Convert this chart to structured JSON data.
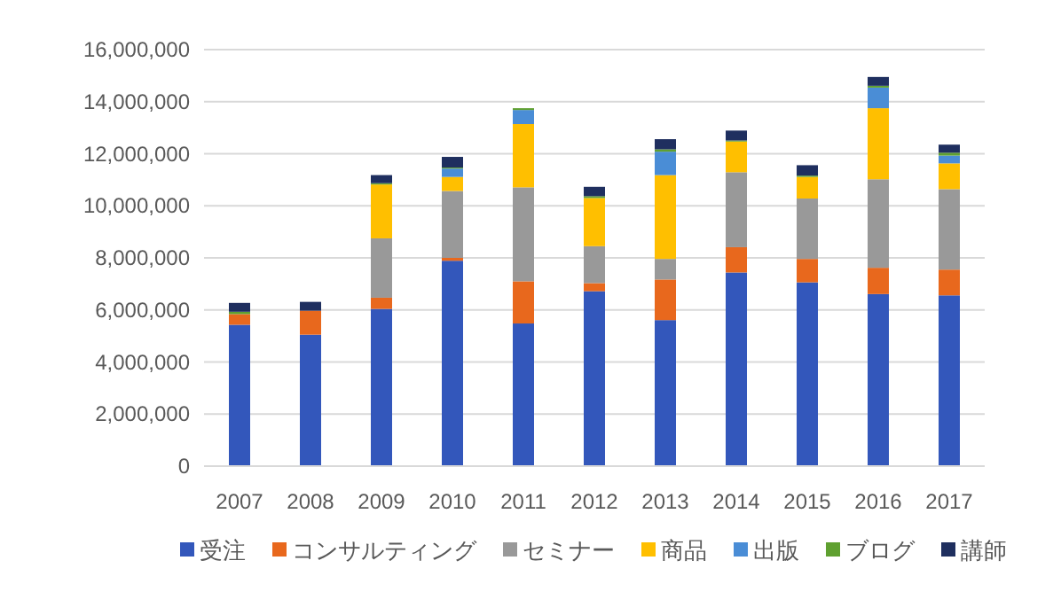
{
  "chart_data": {
    "type": "bar",
    "stacked": true,
    "grid": "y",
    "legend": "bottom",
    "categories": [
      "2007",
      "2008",
      "2009",
      "2010",
      "2011",
      "2012",
      "2013",
      "2014",
      "2015",
      "2016",
      "2017"
    ],
    "ylim": [
      0,
      16000000
    ],
    "yticks": [
      {
        "value": 0,
        "label": "0"
      },
      {
        "value": 2000000,
        "label": "2,000,000"
      },
      {
        "value": 4000000,
        "label": "4,000,000"
      },
      {
        "value": 6000000,
        "label": "6,000,000"
      },
      {
        "value": 8000000,
        "label": "8,000,000"
      },
      {
        "value": 10000000,
        "label": "10,000,000"
      },
      {
        "value": 12000000,
        "label": "12,000,000"
      },
      {
        "value": 14000000,
        "label": "14,000,000"
      },
      {
        "value": 16000000,
        "label": "16,000,000"
      }
    ],
    "series": [
      {
        "name": "受注",
        "color": "#3357bb",
        "values": [
          5430000,
          5050000,
          6040000,
          7890000,
          5480000,
          6720000,
          5610000,
          7440000,
          7060000,
          6610000,
          6560000
        ]
      },
      {
        "name": "コンサルティング",
        "color": "#e8681d",
        "values": [
          410000,
          920000,
          430000,
          110000,
          1620000,
          310000,
          1560000,
          970000,
          900000,
          1010000,
          990000
        ]
      },
      {
        "name": "セミナー",
        "color": "#999999",
        "values": [
          0,
          0,
          2280000,
          2570000,
          3610000,
          1420000,
          790000,
          2880000,
          2320000,
          3400000,
          3090000
        ]
      },
      {
        "name": "商品",
        "color": "#ffbf00",
        "values": [
          0,
          0,
          2070000,
          540000,
          2430000,
          1850000,
          3220000,
          1180000,
          830000,
          2730000,
          990000
        ]
      },
      {
        "name": "出版",
        "color": "#4a8dd6",
        "values": [
          0,
          0,
          0,
          320000,
          540000,
          0,
          900000,
          0,
          0,
          790000,
          300000
        ]
      },
      {
        "name": "ブログ",
        "color": "#5fa030",
        "values": [
          90000,
          0,
          50000,
          40000,
          70000,
          70000,
          90000,
          40000,
          50000,
          70000,
          110000
        ]
      },
      {
        "name": "講師",
        "color": "#1f2f5f",
        "values": [
          340000,
          340000,
          310000,
          410000,
          0,
          360000,
          390000,
          380000,
          400000,
          340000,
          310000
        ]
      }
    ]
  }
}
